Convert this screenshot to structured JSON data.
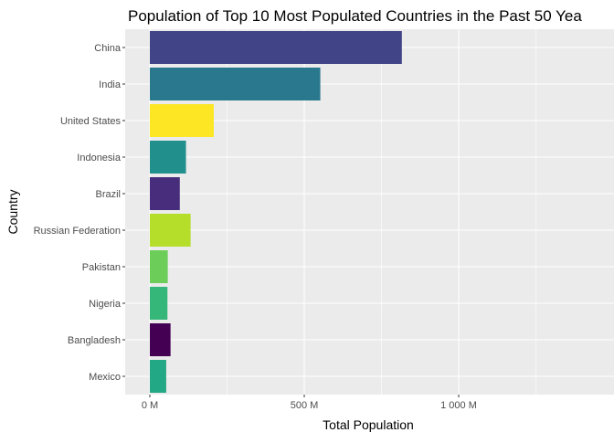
{
  "chart_data": {
    "type": "bar",
    "orientation": "horizontal",
    "title": "Population of Top 10 Most Populated Countries in the Past 50 Yea",
    "xlabel": "Total Population",
    "ylabel": "Country",
    "xlim": [
      -25,
      1420
    ],
    "x_ticks": [
      0,
      500,
      1000
    ],
    "x_tick_labels": [
      "0 M",
      "500 M",
      "1 000 M"
    ],
    "x_minor_ticks": [
      250,
      750,
      1250
    ],
    "grid": true,
    "legend": "none",
    "categories": [
      "China",
      "India",
      "United States",
      "Indonesia",
      "Brazil",
      "Russian Federation",
      "Pakistan",
      "Nigeria",
      "Bangladesh",
      "Mexico"
    ],
    "values": [
      816,
      552,
      207,
      117,
      97,
      132,
      58,
      57,
      67,
      53
    ],
    "colors": [
      "#414487",
      "#2A788E",
      "#FDE725",
      "#21908C",
      "#472D7B",
      "#B5DE2B",
      "#6DCD59",
      "#35B779",
      "#440154",
      "#22A884"
    ]
  },
  "theme": {
    "panel_bg": "#EBEBEB",
    "grid_major": "#FFFFFF",
    "tick_color": "#333333"
  }
}
